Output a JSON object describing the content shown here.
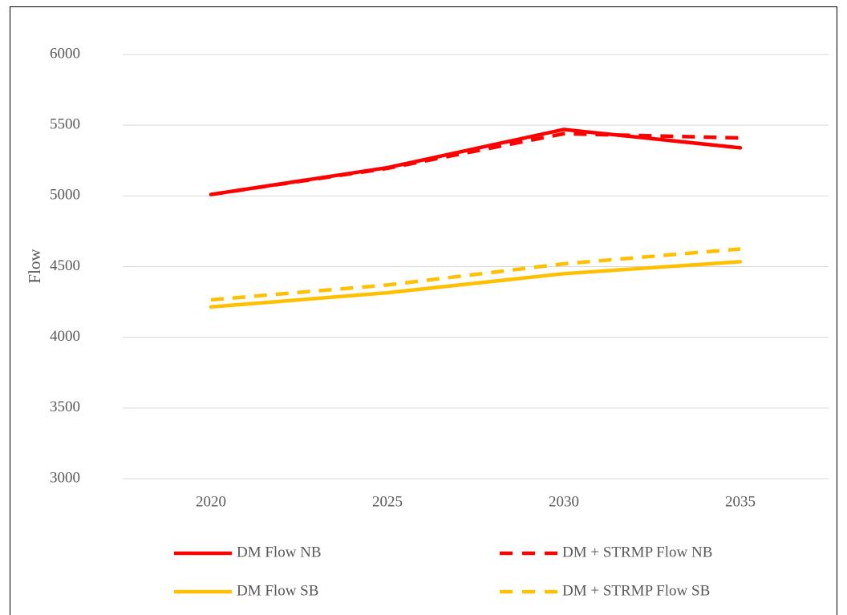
{
  "chart_data": {
    "type": "line",
    "y_label": "Flow",
    "categories": [
      "2020",
      "2025",
      "2030",
      "2035"
    ],
    "series": [
      {
        "name": "DM Flow NB",
        "color": "#ff0000",
        "dashed": false,
        "values": [
          5010,
          5200,
          5470,
          5340
        ]
      },
      {
        "name": "DM + STRMP Flow NB",
        "color": "#ff0000",
        "dashed": true,
        "values": [
          5010,
          5195,
          5440,
          5410
        ]
      },
      {
        "name": "DM Flow SB",
        "color": "#ffc000",
        "dashed": false,
        "values": [
          4215,
          4315,
          4450,
          4535
        ]
      },
      {
        "name": "DM + STRMP Flow SB",
        "color": "#ffc000",
        "dashed": true,
        "values": [
          4265,
          4370,
          4520,
          4625
        ]
      }
    ],
    "ylim": [
      3000,
      6000
    ],
    "yticks": [
      3000,
      3500,
      4000,
      4500,
      5000,
      5500,
      6000
    ],
    "grid": true,
    "legend": "bottom"
  }
}
